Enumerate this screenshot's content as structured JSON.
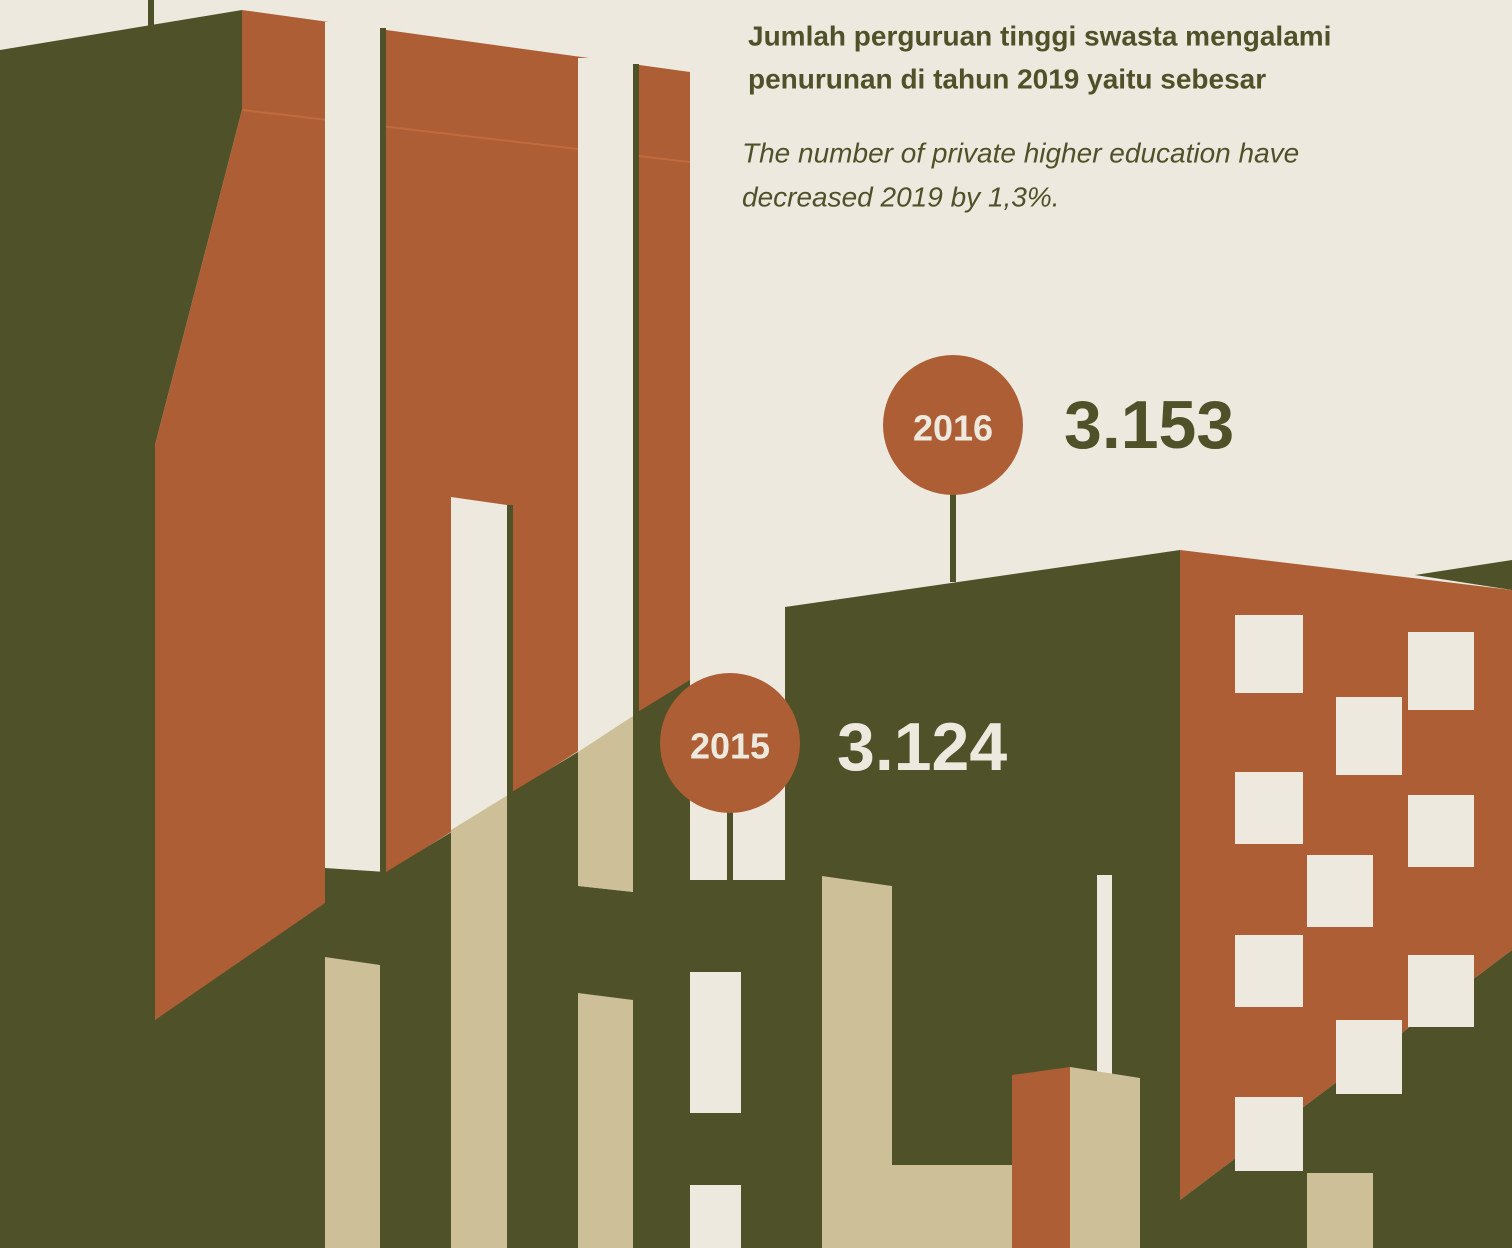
{
  "header": {
    "title_lines": [
      "Jumlah perguruan tinggi swasta mengalami",
      "penurunan di tahun 2019 yaitu sebesar"
    ],
    "subtitle_lines": [
      "The number of private higher education have",
      "decreased 2019 by 1,3%."
    ]
  },
  "markers": [
    {
      "year": "2016",
      "value": "3.153"
    },
    {
      "year": "2015",
      "value": "3.124"
    }
  ]
}
